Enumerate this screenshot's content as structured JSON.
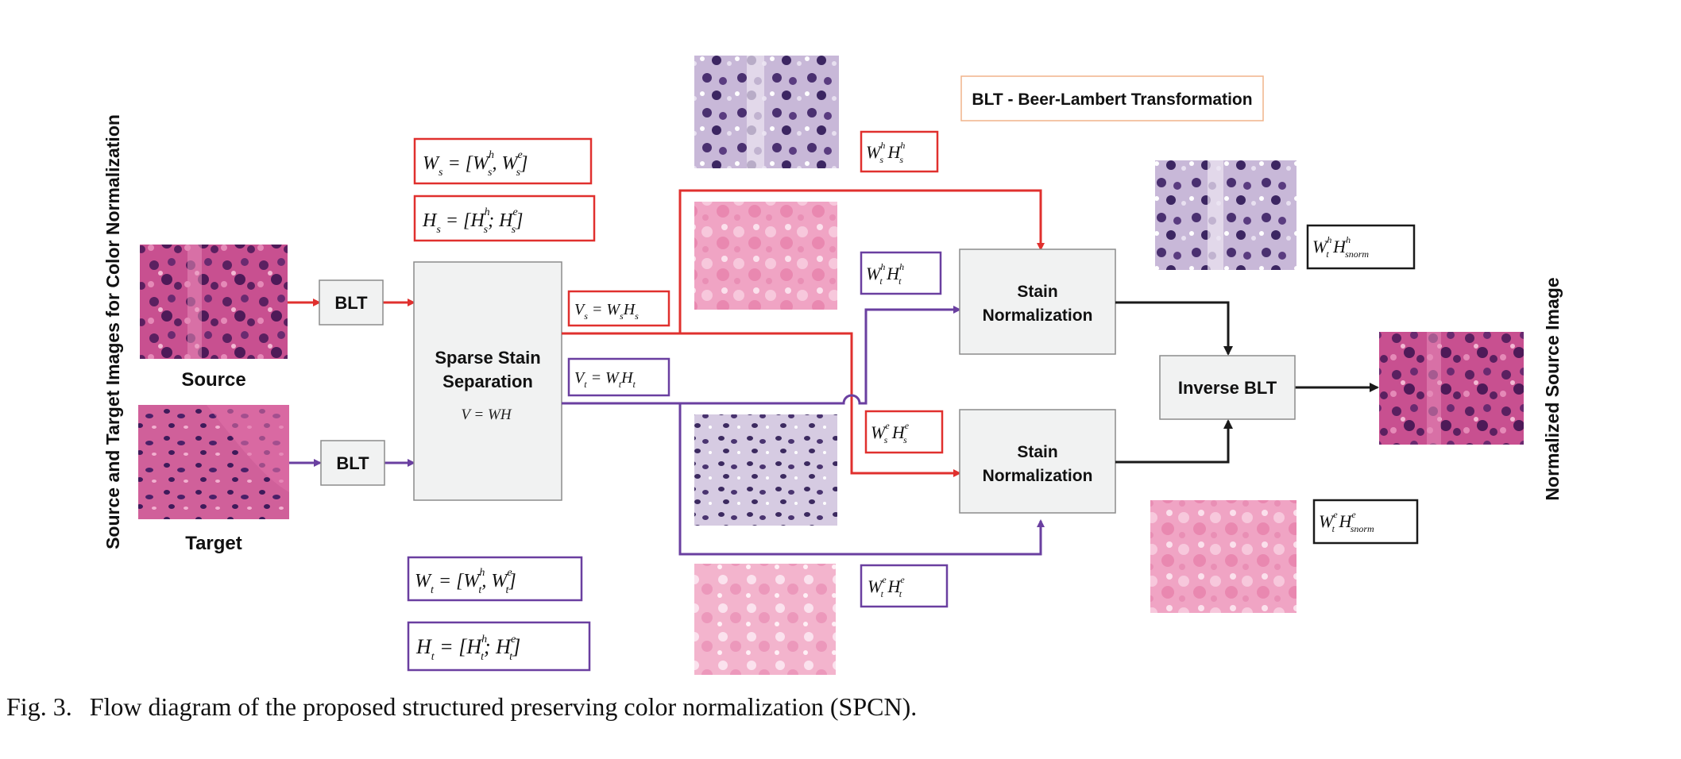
{
  "vertical_labels": {
    "left": "Source and Target Images for Color Normalization",
    "right": "Normalized Source Image"
  },
  "legend": "BLT - Beer-Lambert Transformation",
  "image_labels": {
    "source": "Source",
    "target": "Target"
  },
  "blocks": {
    "blt_source": "BLT",
    "blt_target": "BLT",
    "sss_line1": "Sparse Stain",
    "sss_line2": "Separation",
    "sss_eq": "V = WH",
    "stain_norm_top_1": "Stain",
    "stain_norm_top_2": "Normalization",
    "stain_norm_bottom_1": "Stain",
    "stain_norm_bottom_2": "Normalization",
    "inverse_blt": "Inverse BLT"
  },
  "equations": {
    "ws": "W_s = [W_s^h, W_s^e]",
    "hs": "H_s = [H_s^h; H_s^e]",
    "wt": "W_t = [W_t^h, W_t^e]",
    "ht": "H_t = [H_t^h; H_t^e]",
    "vs": "V_s = W_s H_s",
    "vt": "V_t = W_t H_t",
    "ws_h_hs_h": "W_s^h H_s^h",
    "wt_h_ht_h": "W_t^h H_t^h",
    "ws_e_hs_e": "W_s^e H_s^e",
    "wt_e_ht_e": "W_t^e H_t^e",
    "wt_h_hsnorm_h": "W_t^h H_snorm^h",
    "wt_e_hsnorm_e": "W_t^e H_snorm^e"
  },
  "colors": {
    "source_path": "#e0302e",
    "target_path": "#6a3fa0",
    "output_path": "#1a1a1a",
    "block_fill": "#f1f2f2",
    "block_stroke": "#8c8c8c",
    "legend_border": "#f0b48a",
    "he_tissue": "#c85090",
    "hematoxylin_tissue": "#9a7fb5",
    "eosin_tissue": "#f0a4c4"
  },
  "caption": {
    "figure": "Fig. 3.",
    "text": "Flow diagram of the proposed structured preserving color normalization (SPCN)."
  }
}
